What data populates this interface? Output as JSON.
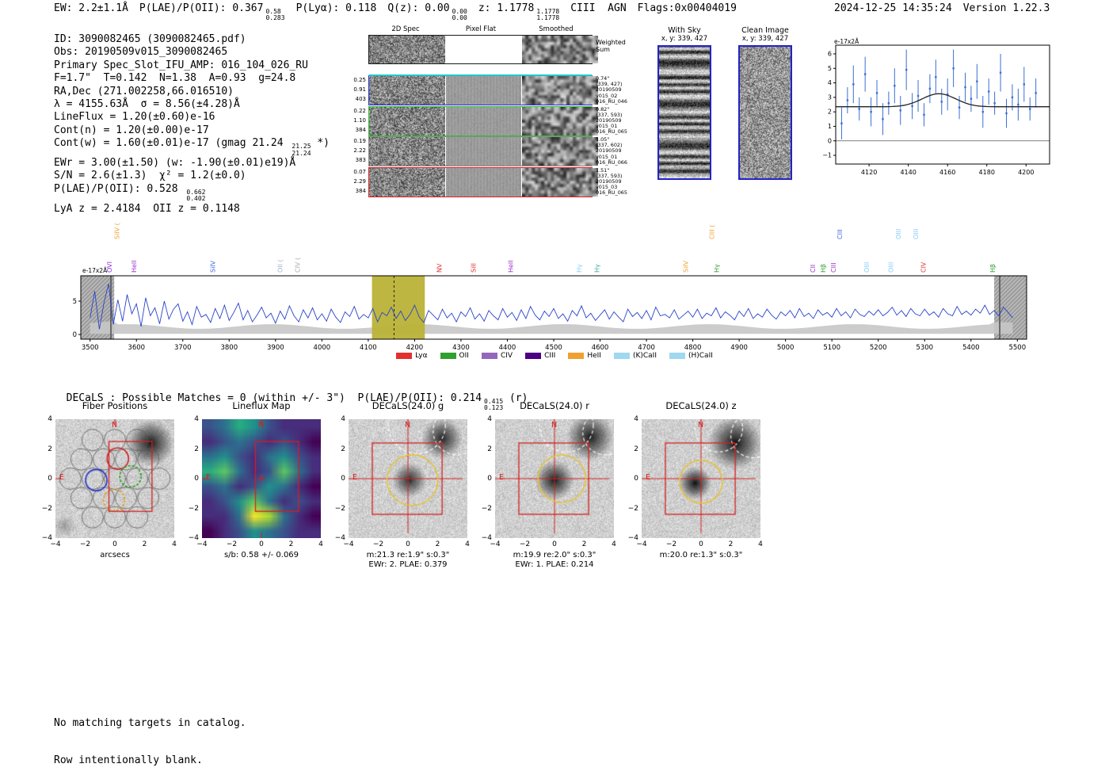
{
  "header": {
    "ew": "EW: 2.2±1.1Å",
    "plae_poii_label": "P(LAE)/P(OII): 0.367",
    "plae_poii_hi": "0.58",
    "plae_poii_lo": "0.283",
    "plya": "P(Lyα): 0.118",
    "qz_label": "Q(z): 0.00",
    "qz_hi": "0.00",
    "qz_lo": "0.00",
    "z_label": "z: 1.1778",
    "z_hi": "1.1778",
    "z_lo": "1.1778",
    "classification": "CIII  AGN",
    "flags": "Flags:0x00404019",
    "timestamp": "2024-12-25 14:35:24",
    "version": "Version 1.22.3"
  },
  "info_block": {
    "lines": [
      [
        {
          "t": "ID: 3090082465 (3090082465.pdf)"
        }
      ],
      [
        {
          "t": "Obs: 20190509v015_3090082465"
        }
      ],
      [
        {
          "t": "Primary Spec_Slot_IFU_AMP: 016_104_026_RU"
        }
      ],
      [
        {
          "t": "F=1.7\"  T=0.142  N=1.38  A=0.93  g=24.8"
        }
      ],
      [
        {
          "t": "RA,Dec (271.002258,66.016510)"
        }
      ],
      [
        {
          "t": "λ = 4155.63Å  σ = 8.56(±4.28)Å"
        }
      ],
      [
        {
          "t": "LineFlux = 1.20(±0.60)e-16"
        }
      ],
      [
        {
          "t": "Cont(n) = 1.20(±0.00)e-17"
        }
      ],
      [
        {
          "t": "Cont(w) = 1.60(±0.01)e-17 (gmag 21.24 "
        },
        {
          "hi": "21.25",
          "lo": "21.24"
        },
        {
          "t": " *)"
        }
      ],
      [
        {
          "t": "EWr = 3.00(±1.50) (w: -1.90(±0.01)e19)Å"
        }
      ],
      [
        {
          "t": "S/N = 2.6(±1.3)  χ² = 1.2(±0.0)"
        }
      ],
      [
        {
          "t": "P(LAE)/P(OII): 0.528 "
        },
        {
          "hi": "0.662",
          "lo": "0.402"
        }
      ],
      [
        {
          "t": "LyA z = 2.4184  OII z = 0.1148"
        }
      ]
    ]
  },
  "spec2d": {
    "col_headers": [
      "2D Spec",
      "Pixel Flat",
      "Smoothed"
    ],
    "weighted_label": [
      "Weighted",
      "Sum"
    ],
    "rows": [
      {
        "border": "#1a1a1a",
        "left": [],
        "right": []
      },
      {
        "border": "#2431d8",
        "left": [
          "0.25",
          "0.91",
          "403"
        ],
        "right": [
          "0.74\"",
          "(339, 427)",
          "20190509",
          "v015_02",
          "016_RU_046"
        ]
      },
      {
        "border": "#27c52a",
        "left": [
          "0.22",
          "1.10",
          "384"
        ],
        "right": [
          "0.82\"",
          "(337, 593)",
          "20190509",
          "v015_01",
          "016_RU_065"
        ]
      },
      {
        "border": "#8a8a8a",
        "left": [
          "0.19",
          "2.22",
          "383"
        ],
        "right": [
          "1.05\"",
          "(337, 602)",
          "20190509",
          "v015_01",
          "016_RU_066"
        ]
      },
      {
        "border": "#e01f1f",
        "left": [
          "0.07",
          "2.29",
          "384"
        ],
        "right": [
          "1.51\"",
          "(337, 593)",
          "20190509",
          "v015_03",
          "016_RU_065"
        ]
      }
    ]
  },
  "sky_panels": {
    "with_sky_title": "With Sky",
    "with_sky_coords": "x, y: 339, 427",
    "clean_title": "Clean Image",
    "clean_coords": "x, y: 339, 427"
  },
  "decals": {
    "header_label": "DECaLS : Possible Matches = 0 (within +/- 3\")  P(LAE)/P(OII): 0.214",
    "header_hi": "0.415",
    "header_lo": "0.123",
    "header_suffix": " (r)",
    "no_match_lines": [
      "No matching targets in catalog.",
      "Row intentionally blank."
    ]
  },
  "cutouts": {
    "xticks": [
      -4,
      -2,
      0,
      2,
      4
    ],
    "yticks": [
      4,
      2,
      0,
      -2,
      -4
    ],
    "compass_n": "N",
    "compass_e": "E",
    "panels": [
      {
        "title": "Fiber Positions",
        "kind": "fiber",
        "captions": [
          "arcsecs"
        ]
      },
      {
        "title": "Lineflux Map",
        "kind": "lineflux",
        "captions": [
          "s/b: 0.58 +/- 0.069"
        ]
      },
      {
        "title": "DECaLS(24.0) g",
        "kind": "decals_g",
        "captions": [
          "m:21.3 re:1.9\" s:0.3\"",
          "EWr: 2. PLAE: 0.379"
        ]
      },
      {
        "title": "DECaLS(24.0) r",
        "kind": "decals_r",
        "captions": [
          "m:19.9 re:2.0\" s:0.3\"",
          "EWr: 1. PLAE: 0.214"
        ]
      },
      {
        "title": "DECaLS(24.0) z",
        "kind": "decals_z",
        "captions": [
          "m:20.0 re:1.3\" s:0.3\""
        ]
      }
    ]
  },
  "chart_data": [
    {
      "id": "line_fit_plot",
      "type": "scatter",
      "ylabel_inline": "e-17x2Å",
      "xlim": [
        4103,
        4212
      ],
      "ylim": [
        -1.6,
        6.6
      ],
      "xticks": [
        4120,
        4140,
        4160,
        4180,
        4200
      ],
      "yticks": [
        6,
        5,
        4,
        3,
        2,
        1,
        0,
        -1
      ],
      "point_color": "#3b6fd4",
      "fit_color": "#222222",
      "points": {
        "x": [
          4106,
          4109,
          4112,
          4115,
          4118,
          4121,
          4124,
          4127,
          4130,
          4133,
          4136,
          4139,
          4142,
          4145,
          4148,
          4151,
          4154,
          4157,
          4160,
          4163,
          4166,
          4169,
          4172,
          4175,
          4178,
          4181,
          4184,
          4187,
          4190,
          4193,
          4196,
          4199,
          4202,
          4205
        ],
        "y": [
          1.2,
          2.8,
          3.9,
          2.2,
          4.6,
          2.0,
          3.3,
          1.5,
          2.6,
          3.8,
          2.1,
          4.9,
          2.4,
          3.1,
          1.8,
          3.6,
          4.4,
          2.7,
          3.2,
          5.0,
          2.3,
          3.7,
          2.9,
          4.1,
          2.0,
          3.4,
          2.6,
          4.7,
          1.9,
          3.0,
          2.5,
          3.9,
          2.2,
          3.3
        ],
        "yerr": [
          1.1,
          0.9,
          1.3,
          0.8,
          1.2,
          1.0,
          0.9,
          1.1,
          0.8,
          1.2,
          1.0,
          1.4,
          0.9,
          1.1,
          0.8,
          1.0,
          1.2,
          0.9,
          1.1,
          1.3,
          0.8,
          1.0,
          0.9,
          1.2,
          1.1,
          0.9,
          0.8,
          1.3,
          1.0,
          0.9,
          1.1,
          1.2,
          0.8,
          1.0
        ]
      },
      "fit": {
        "center": 4155.63,
        "sigma": 8.56,
        "peak": 3.25,
        "baseline": 2.35
      }
    },
    {
      "id": "full_spectrum",
      "type": "line",
      "ylabel_inline": "e-17x2Å",
      "xlim": [
        3480,
        5520
      ],
      "ylim": [
        -0.7,
        8.8
      ],
      "xticks": [
        3500,
        3600,
        3700,
        3800,
        3900,
        4000,
        4100,
        4200,
        4300,
        4400,
        4500,
        4600,
        4700,
        4800,
        4900,
        5000,
        5100,
        5200,
        5300,
        5400,
        5500
      ],
      "yticks": [
        0,
        5
      ],
      "x_start": 3500,
      "x_step": 10,
      "line_color": "#2a43c8",
      "highlight_band": {
        "x0": 4108,
        "x1": 4222,
        "color": "#b9b236",
        "opacity": 0.95
      },
      "marker_wavelength": 4155.63,
      "edge_bands": [
        [
          3480,
          3552
        ],
        [
          5450,
          5520
        ]
      ],
      "edge_markers": [
        3545,
        5462
      ],
      "values": [
        2.5,
        6.5,
        0.8,
        4.8,
        7.6,
        1.5,
        5.2,
        2.0,
        6.0,
        3.1,
        4.6,
        1.2,
        5.5,
        2.8,
        4.0,
        1.6,
        5.0,
        2.3,
        3.8,
        4.6,
        2.0,
        3.4,
        1.5,
        4.2,
        2.6,
        3.0,
        1.8,
        3.9,
        2.4,
        4.4,
        2.1,
        3.3,
        4.7,
        2.2,
        3.6,
        1.9,
        2.9,
        4.1,
        2.5,
        3.2,
        1.7,
        3.5,
        2.3,
        4.3,
        2.8,
        1.9,
        3.7,
        2.5,
        4.0,
        2.2,
        3.1,
        2.0,
        3.8,
        2.6,
        1.8,
        3.4,
        2.7,
        4.2,
        2.3,
        3.0,
        2.5,
        3.9,
        1.9,
        3.3,
        2.8,
        4.1,
        2.4,
        3.5,
        2.1,
        3.0,
        4.4,
        2.6,
        1.8,
        3.6,
        2.9,
        2.2,
        3.8,
        2.5,
        3.2,
        1.9,
        3.4,
        2.7,
        4.0,
        2.3,
        3.1,
        2.0,
        3.6,
        2.8,
        2.2,
        3.9,
        2.6,
        3.3,
        2.1,
        3.7,
        2.4,
        4.2,
        2.9,
        2.2,
        3.5,
        2.7,
        3.9,
        2.4,
        3.1,
        2.0,
        3.6,
        2.8,
        4.3,
        2.5,
        3.2,
        2.1,
        2.9,
        3.7,
        2.3,
        3.4,
        2.6,
        1.9,
        3.8,
        2.7,
        3.3,
        2.4,
        3.6,
        2.2,
        4.1,
        2.8,
        3.0,
        2.5,
        3.7,
        2.3,
        2.9,
        3.5,
        2.6,
        3.8,
        2.4,
        3.2,
        2.8,
        4.0,
        2.5,
        3.4,
        2.9,
        2.2,
        3.5,
        2.7,
        3.9,
        2.4,
        3.1,
        2.6,
        3.8,
        2.9,
        2.3,
        3.4,
        2.8,
        3.6,
        2.5,
        3.9,
        2.7,
        3.2,
        2.4,
        3.7,
        2.9,
        3.3,
        2.6,
        3.9,
        2.8,
        3.4,
        2.5,
        3.8,
        3.0,
        2.7,
        3.5,
        2.9,
        3.7,
        2.8,
        3.3,
        4.1,
        2.9,
        3.6,
        2.7,
        3.9,
        3.1,
        2.8,
        3.8,
        2.9,
        3.4,
        2.6,
        3.9,
        3.1,
        2.8,
        4.2,
        3.0,
        3.5,
        2.9,
        3.8,
        3.2,
        4.4,
        3.0,
        3.6,
        2.8,
        4.1,
        3.3,
        2.5
      ],
      "line_labels": [
        {
          "text": "SiIV (",
          "wavelength": 3563,
          "color": "#f0a030",
          "row": 1
        },
        {
          "text": "OVI",
          "wavelength": 3547,
          "color": "#8a2be2",
          "row": 0
        },
        {
          "text": "HeII",
          "wavelength": 3600,
          "color": "#9932cc",
          "row": 0
        },
        {
          "text": "SiIV",
          "wavelength": 3770,
          "color": "#4169e1",
          "row": 0
        },
        {
          "text": "OII (",
          "wavelength": 3915,
          "color": "#9fb6cd",
          "row": 0
        },
        {
          "text": "CIV (",
          "wavelength": 3952,
          "color": "#a9a9a9",
          "row": 0
        },
        {
          "text": "NV",
          "wavelength": 4258,
          "color": "#e03030",
          "row": 0
        },
        {
          "text": "SiII",
          "wavelength": 4332,
          "color": "#e03030",
          "row": 0
        },
        {
          "text": "HeII",
          "wavelength": 4412,
          "color": "#9932cc",
          "row": 0
        },
        {
          "text": "Hγ",
          "wavelength": 4560,
          "color": "#87cefa",
          "row": 0
        },
        {
          "text": "Hγ",
          "wavelength": 4598,
          "color": "#40b0a0",
          "row": 0
        },
        {
          "text": "SiIV",
          "wavelength": 4790,
          "color": "#f0a030",
          "row": 0
        },
        {
          "text": "CIII (",
          "wavelength": 4846,
          "color": "#f0a030",
          "row": 1
        },
        {
          "text": "Hγ",
          "wavelength": 4856,
          "color": "#30a030",
          "row": 0
        },
        {
          "text": "CII",
          "wavelength": 5064,
          "color": "#9932cc",
          "row": 0
        },
        {
          "text": "Hβ",
          "wavelength": 5086,
          "color": "#30a030",
          "row": 0
        },
        {
          "text": "CIII",
          "wavelength": 5108,
          "color": "#9932cc",
          "row": 0
        },
        {
          "text": "CIII",
          "wavelength": 5122,
          "color": "#4169e1",
          "row": 1
        },
        {
          "text": "OIII",
          "wavelength": 5180,
          "color": "#87cefa",
          "row": 0
        },
        {
          "text": "OIII",
          "wavelength": 5232,
          "color": "#87cefa",
          "row": 0
        },
        {
          "text": "OIII",
          "wavelength": 5248,
          "color": "#87cefa",
          "row": 1
        },
        {
          "text": "OIII",
          "wavelength": 5286,
          "color": "#87cefa",
          "row": 1
        },
        {
          "text": "CIV",
          "wavelength": 5302,
          "color": "#e03030",
          "row": 0
        },
        {
          "text": "Hβ",
          "wavelength": 5452,
          "color": "#30a030",
          "row": 0
        }
      ],
      "legend": [
        {
          "label": "Lyα",
          "color": "#e03030"
        },
        {
          "label": "OII",
          "color": "#30a030"
        },
        {
          "label": "CIV",
          "color": "#9467bd"
        },
        {
          "label": "CIII",
          "color": "#4b0082"
        },
        {
          "label": "HeII",
          "color": "#f0a030"
        },
        {
          "label": "(K)CaII",
          "color": "#9fd8ef"
        },
        {
          "label": "(H)CaII",
          "color": "#9fd8ef"
        }
      ]
    }
  ]
}
